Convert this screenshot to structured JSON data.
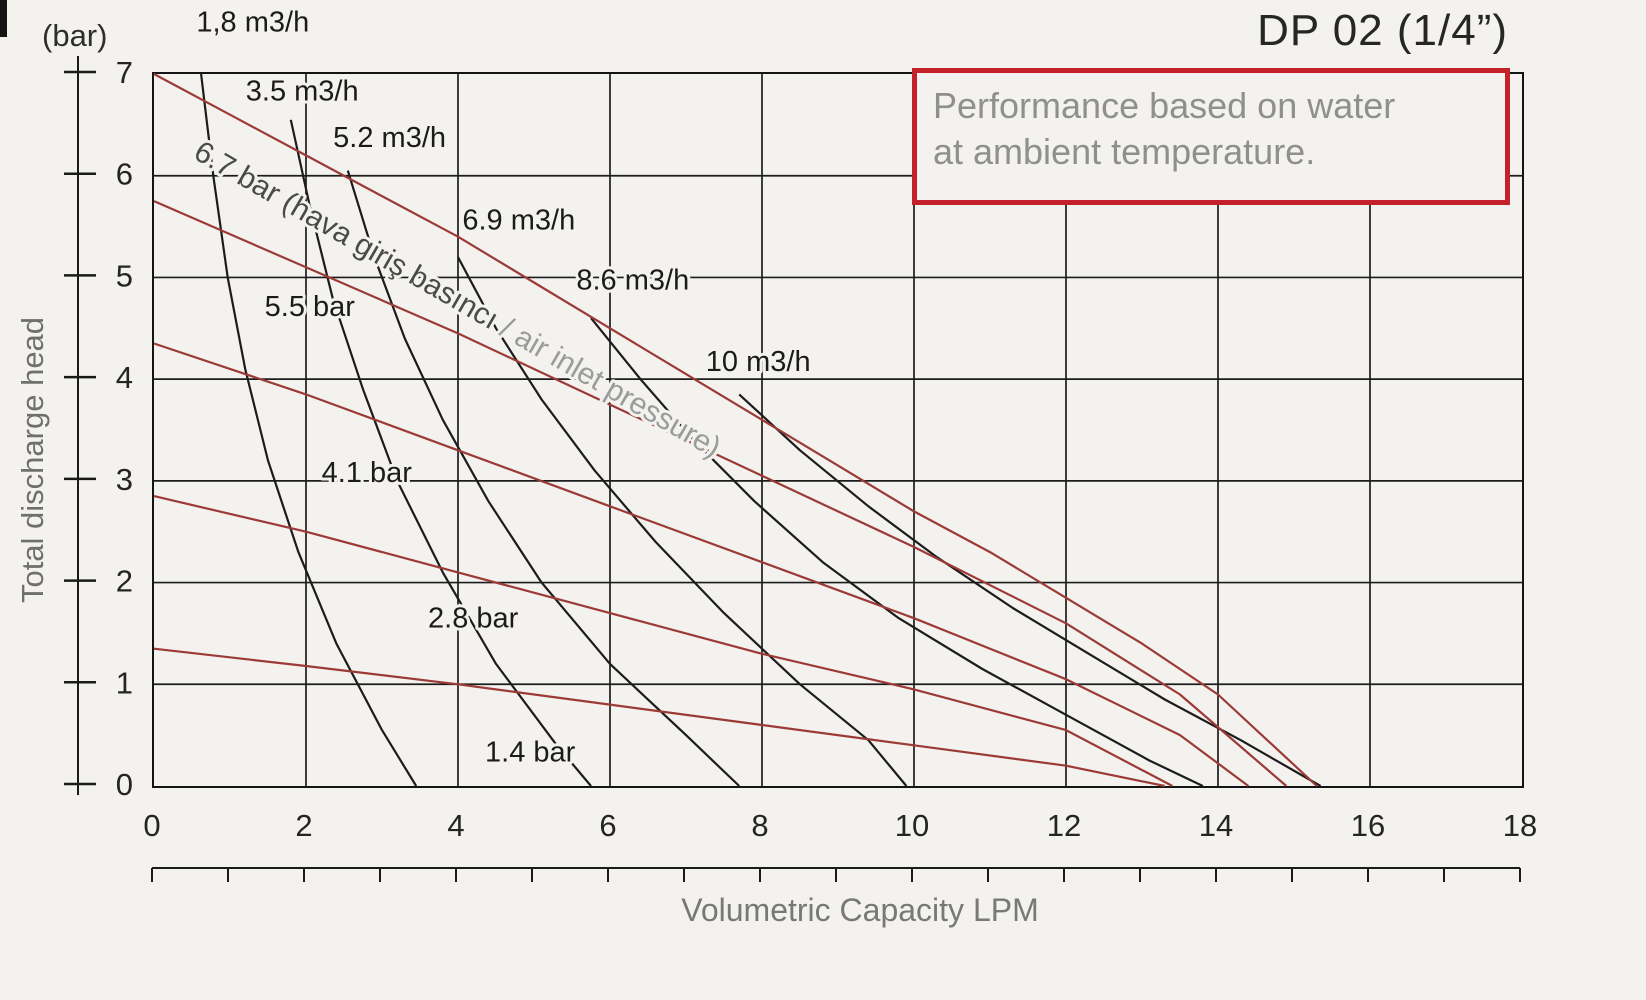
{
  "title": "DP 02 (1/4”)",
  "note": {
    "lines": [
      "Performance based on water",
      "at ambient temperature."
    ]
  },
  "axes": {
    "y_unit": "(bar)",
    "y_title": "Total discharge head",
    "x_title": "Volumetric Capacity LPM"
  },
  "colors": {
    "background": "#f3f2ef",
    "grid": "#1c1c1c",
    "consumption_curve": "#1c1c1c",
    "pressure_curve": "#9c3a36",
    "note_border": "#c5212b",
    "note_text": "#8f8f8f",
    "axis_text": "#242424",
    "axis_title_text": "#787878",
    "label_text": "#1b1b1b",
    "pressure_label_dark": "#4a4a4a",
    "pressure_label_light": "#9b9b9b"
  },
  "chart_data": {
    "type": "line",
    "title": "DP 02 (1/4”)",
    "xlabel": "Volumetric Capacity LPM",
    "ylabel": "Total discharge head (bar)",
    "xlim": [
      0,
      18
    ],
    "ylim": [
      0,
      7
    ],
    "x_ticks": [
      0,
      2,
      4,
      6,
      8,
      10,
      12,
      14,
      16,
      18
    ],
    "x_minor_tick_step": 1,
    "y_ticks": [
      0,
      1,
      2,
      3,
      4,
      5,
      6,
      7
    ],
    "grid": {
      "on": true,
      "x_step": 2,
      "y_step": 1
    },
    "legend": "labels drawn on curves",
    "series": [
      {
        "name": "1,8 m3/h",
        "group": "air-consumption",
        "points": [
          [
            0.62,
            7.0
          ],
          [
            0.78,
            6.0
          ],
          [
            0.97,
            5.0
          ],
          [
            1.2,
            4.1
          ],
          [
            1.5,
            3.2
          ],
          [
            1.9,
            2.3
          ],
          [
            2.4,
            1.4
          ],
          [
            3.0,
            0.55
          ],
          [
            3.45,
            0
          ]
        ]
      },
      {
        "name": "3.5 m3/h",
        "group": "air-consumption",
        "points": [
          [
            1.8,
            6.55
          ],
          [
            2.05,
            5.7
          ],
          [
            2.35,
            4.8
          ],
          [
            2.75,
            3.9
          ],
          [
            3.2,
            3.0
          ],
          [
            3.8,
            2.1
          ],
          [
            4.5,
            1.2
          ],
          [
            5.3,
            0.4
          ],
          [
            5.75,
            0
          ]
        ]
      },
      {
        "name": "5.2 m3/h",
        "group": "air-consumption",
        "points": [
          [
            2.55,
            6.05
          ],
          [
            2.9,
            5.2
          ],
          [
            3.3,
            4.4
          ],
          [
            3.8,
            3.6
          ],
          [
            4.4,
            2.8
          ],
          [
            5.1,
            2.0
          ],
          [
            6.0,
            1.2
          ],
          [
            7.0,
            0.5
          ],
          [
            7.7,
            0
          ]
        ]
      },
      {
        "name": "6.9 m3/h",
        "group": "air-consumption",
        "points": [
          [
            4.0,
            5.2
          ],
          [
            4.5,
            4.5
          ],
          [
            5.1,
            3.8
          ],
          [
            5.8,
            3.1
          ],
          [
            6.6,
            2.4
          ],
          [
            7.5,
            1.7
          ],
          [
            8.5,
            1.0
          ],
          [
            9.4,
            0.45
          ],
          [
            9.9,
            0
          ]
        ]
      },
      {
        "name": "8.6 m3/h",
        "group": "air-consumption",
        "points": [
          [
            5.75,
            4.6
          ],
          [
            6.4,
            4.0
          ],
          [
            7.1,
            3.4
          ],
          [
            7.9,
            2.8
          ],
          [
            8.8,
            2.2
          ],
          [
            9.8,
            1.65
          ],
          [
            10.9,
            1.15
          ],
          [
            12.0,
            0.7
          ],
          [
            13.1,
            0.25
          ],
          [
            13.8,
            0
          ]
        ]
      },
      {
        "name": "10 m3/h",
        "group": "air-consumption",
        "points": [
          [
            7.7,
            3.85
          ],
          [
            8.5,
            3.3
          ],
          [
            9.4,
            2.75
          ],
          [
            10.3,
            2.25
          ],
          [
            11.3,
            1.75
          ],
          [
            12.3,
            1.3
          ],
          [
            13.3,
            0.85
          ],
          [
            14.3,
            0.45
          ],
          [
            15.35,
            0
          ]
        ]
      },
      {
        "name": "6.7 bar",
        "group": "air-inlet-pressure",
        "points": [
          [
            0,
            7.0
          ],
          [
            1,
            6.6
          ],
          [
            2,
            6.2
          ],
          [
            3,
            5.8
          ],
          [
            4,
            5.4
          ],
          [
            5,
            4.95
          ],
          [
            6,
            4.5
          ],
          [
            7,
            4.05
          ],
          [
            8,
            3.6
          ],
          [
            9,
            3.15
          ],
          [
            10,
            2.7
          ],
          [
            11,
            2.3
          ],
          [
            12,
            1.85
          ],
          [
            13,
            1.4
          ],
          [
            14,
            0.9
          ],
          [
            15.3,
            0
          ]
        ]
      },
      {
        "name": "5.5 bar",
        "group": "air-inlet-pressure",
        "points": [
          [
            0,
            5.75
          ],
          [
            2,
            5.1
          ],
          [
            4,
            4.45
          ],
          [
            6,
            3.75
          ],
          [
            8,
            3.05
          ],
          [
            10,
            2.35
          ],
          [
            12,
            1.6
          ],
          [
            13.5,
            0.9
          ],
          [
            14.9,
            0
          ]
        ]
      },
      {
        "name": "4.1 bar",
        "group": "air-inlet-pressure",
        "points": [
          [
            0,
            4.35
          ],
          [
            2,
            3.85
          ],
          [
            4,
            3.3
          ],
          [
            6,
            2.75
          ],
          [
            8,
            2.2
          ],
          [
            10,
            1.65
          ],
          [
            12,
            1.05
          ],
          [
            13.5,
            0.5
          ],
          [
            14.4,
            0
          ]
        ]
      },
      {
        "name": "2.8 bar",
        "group": "air-inlet-pressure",
        "points": [
          [
            0,
            2.85
          ],
          [
            2,
            2.5
          ],
          [
            4,
            2.1
          ],
          [
            6,
            1.7
          ],
          [
            8,
            1.3
          ],
          [
            10,
            0.95
          ],
          [
            12,
            0.55
          ],
          [
            13.4,
            0
          ]
        ]
      },
      {
        "name": "1.4 bar",
        "group": "air-inlet-pressure",
        "points": [
          [
            0,
            1.35
          ],
          [
            2,
            1.18
          ],
          [
            4,
            1.0
          ],
          [
            6,
            0.8
          ],
          [
            8,
            0.6
          ],
          [
            10,
            0.4
          ],
          [
            12,
            0.2
          ],
          [
            13.3,
            0
          ]
        ]
      }
    ],
    "annotations": [
      {
        "text": "1,8 m3/h",
        "x": 1.3,
        "y": 7.42
      },
      {
        "text": "3.5 m3/h",
        "x": 1.95,
        "y": 6.74
      },
      {
        "text": "5.2 m3/h",
        "x": 3.1,
        "y": 6.28
      },
      {
        "text": "6.9 m3/h",
        "x": 4.8,
        "y": 5.47
      },
      {
        "text": "8.6 m3/h",
        "x": 6.3,
        "y": 4.88
      },
      {
        "text": "10 m3/h",
        "x": 7.95,
        "y": 4.08
      },
      {
        "text": "5.5 bar",
        "x": 2.05,
        "y": 4.62
      },
      {
        "text": "4.1 bar",
        "x": 2.8,
        "y": 2.99
      },
      {
        "text": "2.8 bar",
        "x": 4.2,
        "y": 1.56
      },
      {
        "text": "1.4 bar",
        "x": 4.95,
        "y": 0.24
      },
      {
        "text": "6.7 bar (hava giriş basıncı ",
        "text2": "/ air inlet pressure)",
        "x": 0.5,
        "y": 6.18,
        "rotate": 30,
        "anchor": "start",
        "size": 30
      }
    ]
  }
}
